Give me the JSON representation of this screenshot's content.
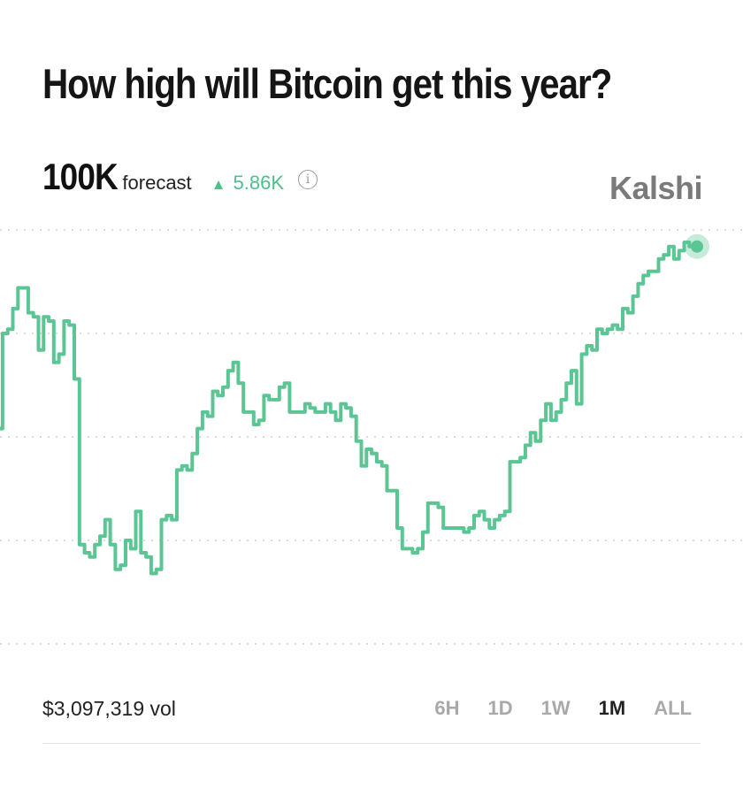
{
  "header": {
    "title": "How high will Bitcoin get this year?",
    "forecast_value": "100K",
    "forecast_label": "forecast",
    "change_arrow": "▲",
    "change_value": "5.86K",
    "info_icon": "info-icon",
    "brand": "Kalshi"
  },
  "colors": {
    "line": "#5cc594",
    "change": "#4fbf8e",
    "brand": "#7a7a7a",
    "grid": "#cfcfcf"
  },
  "chart_data": {
    "type": "line",
    "title": "How high will Bitcoin get this year?",
    "xlabel": "",
    "ylabel": "",
    "grid": true,
    "gridlines": 5,
    "ylim": [
      0,
      100
    ],
    "series": [
      {
        "values": [
          52,
          75,
          76,
          81,
          86,
          86,
          80,
          79,
          71,
          79,
          78,
          68,
          70,
          78,
          77,
          64,
          24,
          22,
          21,
          24,
          26,
          30,
          24,
          18,
          19,
          25,
          23,
          32,
          22,
          21,
          17,
          18,
          30,
          31,
          30,
          42,
          43,
          42,
          46,
          52,
          56,
          55,
          61,
          60,
          62,
          66,
          68,
          63,
          56,
          56,
          53,
          54,
          60,
          59,
          59,
          62,
          63,
          56,
          56,
          56,
          58,
          57,
          56,
          56,
          58,
          56,
          54,
          58,
          57,
          55,
          49,
          43,
          47,
          46,
          44,
          43,
          37,
          37,
          28,
          23,
          23,
          22,
          23,
          27,
          34,
          34,
          33,
          28,
          28,
          28,
          28,
          27,
          28,
          31,
          32,
          30,
          28,
          30,
          31,
          32,
          44,
          44,
          45,
          48,
          51,
          49,
          54,
          58,
          54,
          56,
          59,
          63,
          66,
          58,
          70,
          72,
          71,
          76,
          75,
          76,
          77,
          76,
          81,
          80,
          84,
          87,
          89,
          90,
          90,
          93,
          94,
          96,
          93,
          95,
          97,
          96,
          96
        ]
      }
    ],
    "x_axis": "time (1M range, unlabeled)",
    "last_point_marker": true
  },
  "footer": {
    "volume": "$3,097,319 vol",
    "ranges": [
      "6H",
      "1D",
      "1W",
      "1M",
      "ALL"
    ],
    "active_range": "1M"
  }
}
